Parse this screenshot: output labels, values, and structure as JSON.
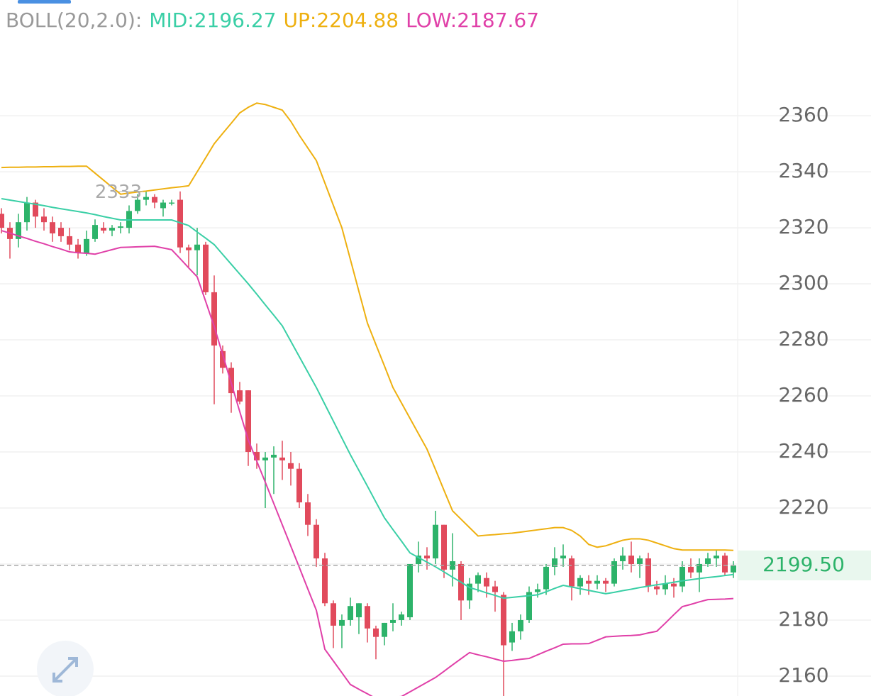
{
  "chart_data": {
    "type": "candlestick",
    "indicator": "BOLL(20,2.0):",
    "ylim": [
      2152.9,
      2401.3
    ],
    "yticks": [
      2160,
      2180,
      2200,
      2220,
      2240,
      2260,
      2280,
      2300,
      2320,
      2340,
      2360
    ],
    "grid": true,
    "up_color": "#2db36a",
    "down_color": "#e14a5c",
    "open": [
      2325,
      2320,
      2316,
      2322,
      2329,
      2324,
      2322,
      2320,
      2317,
      2314,
      2311,
      2316,
      2320,
      2319,
      2320,
      2320,
      2326,
      2330,
      2331,
      2327,
      2329,
      2330,
      2313,
      2312,
      2314,
      2297,
      2276,
      2270,
      2262,
      2262,
      2240,
      2237,
      2238,
      2238,
      2236,
      2234,
      2222,
      2214,
      2202,
      2186,
      2178,
      2180,
      2181,
      2185,
      2177,
      2174,
      2179,
      2180,
      2181,
      2200,
      2203,
      2202,
      2214,
      2198,
      2200,
      2187,
      2193,
      2195,
      2192,
      2189,
      2172,
      2176,
      2180,
      2190,
      2191,
      2199,
      2202,
      2202,
      2192,
      2194,
      2193,
      2194,
      2193,
      2201,
      2203,
      2200,
      2202,
      2192,
      2191,
      2193,
      2192,
      2199,
      2197,
      2200,
      2202,
      2203,
      2197
    ],
    "high": [
      2327,
      2322,
      2325,
      2331,
      2330,
      2327,
      2324,
      2322,
      2320,
      2316,
      2319,
      2323,
      2322,
      2321,
      2322,
      2328,
      2332,
      2333,
      2332,
      2330,
      2330,
      2332.98,
      2314,
      2320,
      2315,
      2303,
      2278,
      2272,
      2265,
      2262,
      2243,
      2240,
      2242,
      2244,
      2240,
      2236,
      2225,
      2216,
      2204,
      2187,
      2182,
      2188,
      2186,
      2186,
      2178,
      2179,
      2186,
      2183,
      2200,
      2208,
      2206,
      2219,
      2214,
      2211,
      2201,
      2195,
      2197,
      2197,
      2194,
      2190,
      2179,
      2182,
      2192,
      2193,
      2200,
      2206,
      2207,
      2203,
      2196,
      2196,
      2196,
      2195,
      2202,
      2206,
      2208,
      2203,
      2204,
      2194,
      2196,
      2195,
      2201,
      2202,
      2202,
      2204,
      2205,
      2204,
      2201
    ],
    "low": [
      2318,
      2309,
      2313,
      2319,
      2320,
      2319,
      2315,
      2315,
      2312,
      2309,
      2310,
      2315,
      2318,
      2317,
      2318,
      2318,
      2325,
      2328,
      2327,
      2324,
      2328,
      2311,
      2306,
      2303,
      2296,
      2257,
      2268,
      2254,
      2257,
      2235,
      2234,
      2220,
      2225,
      2230,
      2228,
      2220,
      2210,
      2199,
      2185,
      2170,
      2170,
      2178,
      2175,
      2172,
      2166,
      2171,
      2176,
      2178,
      2180,
      2197,
      2198,
      2200,
      2195,
      2192,
      2180,
      2184,
      2190,
      2188,
      2183,
      2152,
      2169,
      2173,
      2179,
      2188,
      2189,
      2196,
      2199,
      2187,
      2189,
      2189,
      2191,
      2190,
      2192,
      2198,
      2197,
      2195,
      2190,
      2189,
      2189,
      2188,
      2190,
      2195,
      2190,
      2199,
      2199,
      2196,
      2195
    ],
    "close": [
      2320,
      2316,
      2322,
      2329,
      2324,
      2322,
      2318,
      2317,
      2314,
      2311,
      2316,
      2321,
      2319,
      2320,
      2320.5,
      2326,
      2330,
      2331,
      2329,
      2329,
      2329,
      2313,
      2312,
      2314,
      2297,
      2278,
      2270,
      2261,
      2258,
      2240,
      2237,
      2238,
      2239,
      2237,
      2234,
      2222,
      2214,
      2202,
      2186,
      2178,
      2180,
      2185,
      2186,
      2177,
      2174,
      2179,
      2180,
      2182,
      2200,
      2203,
      2202,
      2214,
      2198,
      2201,
      2187,
      2193,
      2196,
      2192,
      2190,
      2171,
      2176,
      2180,
      2190,
      2191,
      2199,
      2202,
      2203,
      2192,
      2195,
      2193,
      2194,
      2193,
      2201,
      2203,
      2200,
      2202,
      2192,
      2191,
      2193,
      2192,
      2199,
      2197,
      2200,
      2202,
      2203,
      2197,
      2199.5
    ],
    "series": [
      {
        "name": "MID:",
        "color": "#3acfa6",
        "values": [
          2330.4,
          2329.9,
          2329.4,
          2328.9,
          2328.4,
          2327.9,
          2327.3,
          2326.8,
          2326.3,
          2325.8,
          2325.3,
          2324.7,
          2324,
          2323.4,
          2322.8,
          2322.8,
          2322.8,
          2322.8,
          2322.8,
          2322.8,
          2322.8,
          2321.8,
          2320.8,
          2318.5,
          2316.3,
          2314,
          2310.5,
          2307,
          2303.5,
          2300,
          2296.3,
          2292.5,
          2288.8,
          2285,
          2279.5,
          2274,
          2268.5,
          2263,
          2257,
          2251,
          2245,
          2239,
          2233.4,
          2227.8,
          2222.1,
          2216.5,
          2212.3,
          2208.2,
          2204,
          2202.3,
          2200.7,
          2199,
          2197.2,
          2195.3,
          2193.5,
          2191.6,
          2190.7,
          2189.7,
          2188.8,
          2187.8,
          2188.1,
          2188.4,
          2188.7,
          2189,
          2190.1,
          2191.3,
          2192.4,
          2191.8,
          2191.2,
          2190.6,
          2190,
          2189.4,
          2189.9,
          2190.5,
          2191,
          2191.6,
          2192.1,
          2192.6,
          2193,
          2193.5,
          2194,
          2194.4,
          2194.8,
          2195.2,
          2195.5,
          2195.9,
          2196.27
        ]
      },
      {
        "name": "UP:",
        "color": "#eeb010",
        "values": [
          2341.5,
          2341.6,
          2341.6,
          2341.7,
          2341.7,
          2341.8,
          2341.8,
          2341.9,
          2341.9,
          2342,
          2342,
          2339.5,
          2337,
          2334.5,
          2332,
          2332.4,
          2332.8,
          2333.1,
          2333.5,
          2333.9,
          2334.3,
          2334.6,
          2335,
          2340,
          2345,
          2350,
          2353.7,
          2357.3,
          2361,
          2363,
          2364.5,
          2364,
          2363,
          2362,
          2358,
          2353,
          2348.5,
          2344,
          2336,
          2328,
          2320,
          2308.7,
          2297.3,
          2286,
          2278.3,
          2270.7,
          2263,
          2257.5,
          2252,
          2246.5,
          2241,
          2233.7,
          2226.3,
          2219,
          2216,
          2213,
          2210,
          2210.3,
          2210.5,
          2210.8,
          2211,
          2211.4,
          2211.8,
          2212.2,
          2212.6,
          2213,
          2213,
          2212,
          2210,
          2207,
          2206,
          2206.5,
          2207.5,
          2208.5,
          2209,
          2209,
          2208.5,
          2207.5,
          2206.5,
          2205.5,
          2205,
          2205,
          2205,
          2205,
          2205,
          2205,
          2204.88
        ]
      },
      {
        "name": "LOW:",
        "color": "#e040a8",
        "values": [
          2319,
          2318.1,
          2317.1,
          2316.2,
          2315.2,
          2314.3,
          2313.3,
          2312.4,
          2311.4,
          2311.1,
          2310.9,
          2310.6,
          2311.4,
          2312.2,
          2313,
          2313.1,
          2313.2,
          2313.3,
          2313.4,
          2312.8,
          2312.2,
          2309,
          2305.7,
          2302.5,
          2293.7,
          2284.8,
          2274.7,
          2264.6,
          2254.4,
          2244.3,
          2236.7,
          2229.2,
          2221.6,
          2214,
          2206.4,
          2198.8,
          2191.1,
          2183.5,
          2169.6,
          2165.4,
          2161.2,
          2157,
          2155.3,
          2153.7,
          2152,
          2152.2,
          2152.5,
          2152.7,
          2154.4,
          2156.1,
          2157.8,
          2159.5,
          2161.7,
          2164,
          2166.2,
          2168.4,
          2167.6,
          2166.9,
          2166.1,
          2165.3,
          2165.6,
          2166,
          2166.3,
          2167.6,
          2168.9,
          2170.1,
          2171.4,
          2171.5,
          2171.5,
          2171.6,
          2172.8,
          2174,
          2174.2,
          2174.4,
          2174.5,
          2174.7,
          2175.4,
          2176,
          2178.9,
          2181.9,
          2184.8,
          2185.6,
          2186.5,
          2187.3,
          2187.4,
          2187.5,
          2187.67
        ]
      }
    ],
    "last_price": {
      "value": 2199.5,
      "label": "2199.50"
    }
  }
}
